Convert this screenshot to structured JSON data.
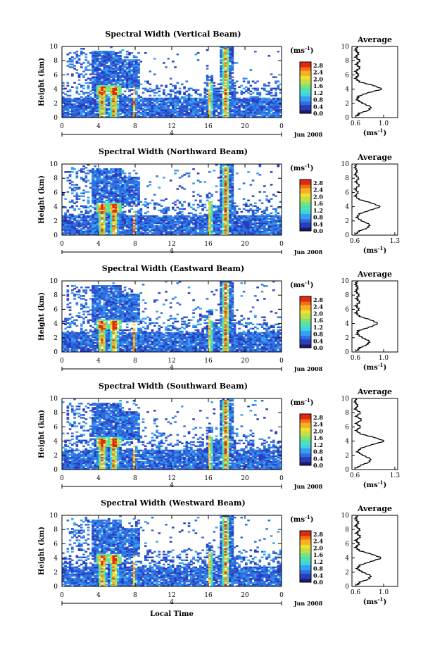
{
  "figure": {
    "x_axis_label": "Local Time",
    "y_axis_label": "Height (km)",
    "date_label": "Jun 2008",
    "day_marker": "4",
    "colorbar_unit": "(ms",
    "colorbar_unit_exp": "-1",
    "colorbar_unit_close": ")",
    "average_title": "Average",
    "average_xunit": "(ms",
    "average_xunit_exp": "-1",
    "average_xunit_close": ")"
  },
  "colors": {
    "scale": [
      "#1a1a66",
      "#2b3cc0",
      "#2f6fe0",
      "#35a0f0",
      "#40d0e8",
      "#4de3b0",
      "#7fe07a",
      "#bfe04a",
      "#f0e030",
      "#f8b020",
      "#f07018",
      "#e02a10",
      "#c00000"
    ]
  },
  "chart_data": [
    {
      "type": "heatmap",
      "title": "Spectral Width (Vertical Beam)",
      "xlabel": "",
      "ylabel": "Height (km)",
      "x_ticks": [
        "0",
        "4",
        "8",
        "12",
        "16",
        "20",
        "0"
      ],
      "xlim": [
        0,
        24
      ],
      "y_ticks": [
        "0",
        "2",
        "4",
        "6",
        "8",
        "10"
      ],
      "ylim": [
        0,
        10
      ],
      "colorbar_ticks": [
        "0.0",
        "0.4",
        "0.8",
        "1.2",
        "1.6",
        "2.0",
        "2.4",
        "2.8"
      ],
      "colorbar_range": [
        0,
        3.0
      ],
      "average_profile": {
        "x_ticks": [
          "0.6",
          "1.0"
        ],
        "xlim": [
          0.55,
          1.2
        ],
        "y_ticks": [
          "0",
          "2",
          "4",
          "6",
          "8",
          "10"
        ],
        "points": [
          [
            0.62,
            0.2
          ],
          [
            0.65,
            0.6
          ],
          [
            0.78,
            1.0
          ],
          [
            0.82,
            1.5
          ],
          [
            0.7,
            2.0
          ],
          [
            0.62,
            2.5
          ],
          [
            0.64,
            3.0
          ],
          [
            0.78,
            3.5
          ],
          [
            0.98,
            4.0
          ],
          [
            0.86,
            4.5
          ],
          [
            0.66,
            5.0
          ],
          [
            0.6,
            5.5
          ],
          [
            0.64,
            6.0
          ],
          [
            0.6,
            6.5
          ],
          [
            0.66,
            7.0
          ],
          [
            0.61,
            7.5
          ],
          [
            0.66,
            8.0
          ],
          [
            0.6,
            8.5
          ],
          [
            0.64,
            9.0
          ],
          [
            0.6,
            9.5
          ],
          [
            0.62,
            10.0
          ]
        ]
      }
    },
    {
      "type": "heatmap",
      "title": "Spectral Width (Northward Beam)",
      "xlabel": "",
      "ylabel": "Height (km)",
      "x_ticks": [
        "0",
        "4",
        "8",
        "12",
        "16",
        "20",
        "0"
      ],
      "xlim": [
        0,
        24
      ],
      "y_ticks": [
        "0",
        "2",
        "4",
        "6",
        "8",
        "10"
      ],
      "ylim": [
        0,
        10
      ],
      "colorbar_ticks": [
        "0.0",
        "0.4",
        "0.8",
        "1.2",
        "1.6",
        "2.0",
        "2.4",
        "2.8"
      ],
      "colorbar_range": [
        0,
        3.0
      ],
      "average_profile": {
        "x_ticks": [
          "0.6",
          "1.3"
        ],
        "xlim": [
          0.55,
          1.35
        ],
        "y_ticks": [
          "0",
          "2",
          "4",
          "6",
          "8",
          "10"
        ],
        "points": [
          [
            0.62,
            0.2
          ],
          [
            0.68,
            0.6
          ],
          [
            0.82,
            1.0
          ],
          [
            0.86,
            1.5
          ],
          [
            0.72,
            2.0
          ],
          [
            0.63,
            2.5
          ],
          [
            0.68,
            3.0
          ],
          [
            0.86,
            3.5
          ],
          [
            1.05,
            4.0
          ],
          [
            0.9,
            4.5
          ],
          [
            0.68,
            5.0
          ],
          [
            0.6,
            5.5
          ],
          [
            0.66,
            6.0
          ],
          [
            0.6,
            6.5
          ],
          [
            0.68,
            7.0
          ],
          [
            0.61,
            7.5
          ],
          [
            0.67,
            8.0
          ],
          [
            0.6,
            8.5
          ],
          [
            0.64,
            9.0
          ],
          [
            0.6,
            9.5
          ],
          [
            0.62,
            10.0
          ]
        ]
      }
    },
    {
      "type": "heatmap",
      "title": "Spectral Width (Eastward Beam)",
      "xlabel": "",
      "ylabel": "Height (km)",
      "x_ticks": [
        "0",
        "4",
        "8",
        "12",
        "16",
        "20",
        "0"
      ],
      "xlim": [
        0,
        24
      ],
      "y_ticks": [
        "0",
        "2",
        "4",
        "6",
        "8",
        "10"
      ],
      "ylim": [
        0,
        10
      ],
      "colorbar_ticks": [
        "0.0",
        "0.4",
        "0.8",
        "1.2",
        "1.6",
        "2.0",
        "2.4",
        "2.8"
      ],
      "colorbar_range": [
        0,
        3.0
      ],
      "average_profile": {
        "x_ticks": [
          "0.6",
          "1.0"
        ],
        "xlim": [
          0.55,
          1.2
        ],
        "y_ticks": [
          "0",
          "2",
          "4",
          "6",
          "8",
          "10"
        ],
        "points": [
          [
            0.62,
            0.2
          ],
          [
            0.66,
            0.6
          ],
          [
            0.76,
            1.0
          ],
          [
            0.8,
            1.5
          ],
          [
            0.7,
            2.0
          ],
          [
            0.62,
            2.5
          ],
          [
            0.64,
            3.0
          ],
          [
            0.8,
            3.5
          ],
          [
            0.92,
            4.0
          ],
          [
            0.82,
            4.5
          ],
          [
            0.66,
            5.0
          ],
          [
            0.6,
            5.5
          ],
          [
            0.65,
            6.0
          ],
          [
            0.6,
            6.5
          ],
          [
            0.66,
            7.0
          ],
          [
            0.61,
            7.5
          ],
          [
            0.65,
            8.0
          ],
          [
            0.6,
            8.5
          ],
          [
            0.63,
            9.0
          ],
          [
            0.6,
            9.5
          ],
          [
            0.62,
            10.0
          ]
        ]
      }
    },
    {
      "type": "heatmap",
      "title": "Spectral Width (Southward Beam)",
      "xlabel": "",
      "ylabel": "Height (km)",
      "x_ticks": [
        "0",
        "4",
        "8",
        "12",
        "16",
        "20",
        "0"
      ],
      "xlim": [
        0,
        24
      ],
      "y_ticks": [
        "0",
        "2",
        "4",
        "6",
        "8",
        "10"
      ],
      "ylim": [
        0,
        10
      ],
      "colorbar_ticks": [
        "0.0",
        "0.4",
        "0.8",
        "1.2",
        "1.6",
        "2.0",
        "2.4",
        "2.8"
      ],
      "colorbar_range": [
        0,
        3.0
      ],
      "average_profile": {
        "x_ticks": [
          "0.6",
          "1.3"
        ],
        "xlim": [
          0.55,
          1.35
        ],
        "y_ticks": [
          "0",
          "2",
          "4",
          "6",
          "8",
          "10"
        ],
        "points": [
          [
            0.62,
            0.2
          ],
          [
            0.7,
            0.6
          ],
          [
            0.84,
            1.0
          ],
          [
            0.88,
            1.5
          ],
          [
            0.74,
            2.0
          ],
          [
            0.64,
            2.5
          ],
          [
            0.7,
            3.0
          ],
          [
            0.9,
            3.5
          ],
          [
            1.12,
            4.0
          ],
          [
            0.95,
            4.5
          ],
          [
            0.7,
            5.0
          ],
          [
            0.62,
            5.5
          ],
          [
            0.7,
            6.0
          ],
          [
            0.62,
            6.5
          ],
          [
            0.72,
            7.0
          ],
          [
            0.62,
            7.5
          ],
          [
            0.7,
            8.0
          ],
          [
            0.6,
            8.5
          ],
          [
            0.65,
            9.0
          ],
          [
            0.6,
            9.5
          ],
          [
            0.62,
            10.0
          ]
        ]
      }
    },
    {
      "type": "heatmap",
      "title": "Spectral Width (Westward Beam)",
      "xlabel": "Local Time",
      "ylabel": "Height (km)",
      "x_ticks": [
        "0",
        "4",
        "8",
        "12",
        "16",
        "20",
        "0"
      ],
      "xlim": [
        0,
        24
      ],
      "y_ticks": [
        "0",
        "2",
        "4",
        "6",
        "8",
        "10"
      ],
      "ylim": [
        0,
        10
      ],
      "colorbar_ticks": [
        "0.0",
        "0.4",
        "0.8",
        "1.2",
        "1.6",
        "2.0",
        "2.4",
        "2.8"
      ],
      "colorbar_range": [
        0,
        3.0
      ],
      "average_profile": {
        "x_ticks": [
          "0.6",
          "1.0"
        ],
        "xlim": [
          0.55,
          1.2
        ],
        "y_ticks": [
          "0",
          "2",
          "4",
          "6",
          "8",
          "10"
        ],
        "points": [
          [
            0.62,
            0.2
          ],
          [
            0.66,
            0.6
          ],
          [
            0.78,
            1.0
          ],
          [
            0.82,
            1.5
          ],
          [
            0.7,
            2.0
          ],
          [
            0.62,
            2.5
          ],
          [
            0.66,
            3.0
          ],
          [
            0.82,
            3.5
          ],
          [
            0.97,
            4.0
          ],
          [
            0.84,
            4.5
          ],
          [
            0.66,
            5.0
          ],
          [
            0.6,
            5.5
          ],
          [
            0.65,
            6.0
          ],
          [
            0.6,
            6.5
          ],
          [
            0.67,
            7.0
          ],
          [
            0.61,
            7.5
          ],
          [
            0.66,
            8.0
          ],
          [
            0.6,
            8.5
          ],
          [
            0.64,
            9.0
          ],
          [
            0.6,
            9.5
          ],
          [
            0.62,
            10.0
          ]
        ]
      }
    }
  ]
}
